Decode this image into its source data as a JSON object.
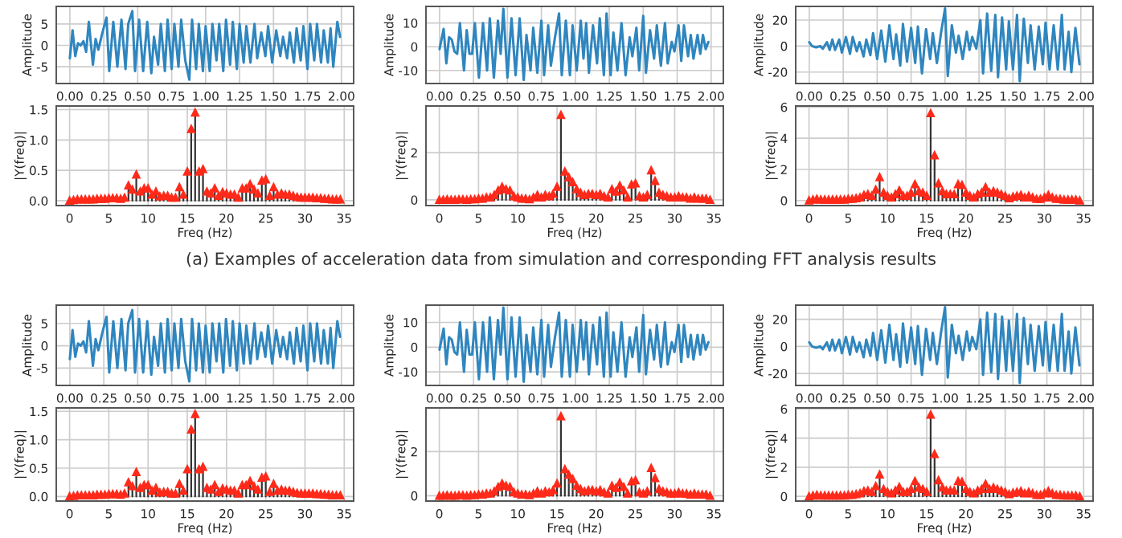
{
  "chart_data": [
    {
      "type": "line",
      "ylabel": "Amplitude",
      "color": "#2f86bf",
      "grid": true,
      "xlim": [
        -0.1,
        2.09
      ],
      "ylim": [
        -8.9,
        9.1
      ],
      "xticks": [
        {
          "value": 0,
          "label": "0.00"
        },
        {
          "value": 0.25,
          "label": "0.25"
        },
        {
          "value": 0.5,
          "label": "0.50"
        },
        {
          "value": 0.75,
          "label": "0.75"
        },
        {
          "value": 1,
          "label": "1.00"
        },
        {
          "value": 1.25,
          "label": "1.25"
        },
        {
          "value": 1.5,
          "label": "1.50"
        },
        {
          "value": 1.75,
          "label": "1.75"
        },
        {
          "value": 2,
          "label": "2.00"
        }
      ],
      "yticks": [
        -5,
        0,
        5
      ],
      "x": [
        0,
        0.02,
        0.04,
        0.06,
        0.08,
        0.1,
        0.12,
        0.14,
        0.17,
        0.19,
        0.21,
        0.24,
        0.27,
        0.29,
        0.32,
        0.35,
        0.38,
        0.41,
        0.43,
        0.46,
        0.48,
        0.51,
        0.54,
        0.57,
        0.6,
        0.62,
        0.65,
        0.67,
        0.7,
        0.72,
        0.75,
        0.77,
        0.8,
        0.82,
        0.85,
        0.88,
        0.9,
        0.93,
        0.95,
        0.98,
        1.0,
        1.03,
        1.05,
        1.08,
        1.1,
        1.13,
        1.15,
        1.18,
        1.2,
        1.23,
        1.25,
        1.28,
        1.3,
        1.33,
        1.36,
        1.38,
        1.41,
        1.44,
        1.46,
        1.49,
        1.52,
        1.55,
        1.57,
        1.6,
        1.62,
        1.65,
        1.67,
        1.7,
        1.72,
        1.75,
        1.77,
        1.8,
        1.82,
        1.85,
        1.87,
        1.9,
        1.92,
        1.94,
        1.97,
        1.99
      ],
      "values": [
        -3,
        3.5,
        -2.5,
        0.5,
        0,
        1,
        -1.5,
        5.5,
        -4.5,
        1.5,
        -1,
        3,
        6.5,
        -6,
        5.5,
        -5,
        6,
        -5.5,
        5,
        8,
        -6,
        6,
        -6,
        5.5,
        -6.5,
        2,
        -4.5,
        5,
        -6,
        6,
        -5.5,
        5,
        -5,
        6,
        -3.5,
        -8,
        6,
        -5.5,
        5,
        -6,
        4.5,
        -6,
        5,
        -3.5,
        5,
        -6,
        6,
        -4.5,
        5.5,
        -5.5,
        5,
        -4,
        4.5,
        -4,
        5,
        -3,
        3,
        -2.5,
        4.5,
        -4,
        3.5,
        -2.5,
        2,
        -3,
        3,
        -4,
        4,
        -3.5,
        4.5,
        -5.5,
        5,
        -3.5,
        5,
        -4,
        3.5,
        -4,
        4,
        -5,
        5.5,
        2
      ]
    },
    {
      "type": "line",
      "ylabel": "Amplitude",
      "color": "#2f86bf",
      "grid": true,
      "xlim": [
        -0.1,
        2.09
      ],
      "ylim": [
        -15.5,
        17
      ],
      "xticks": [
        {
          "value": 0,
          "label": "0.00"
        },
        {
          "value": 0.25,
          "label": "0.25"
        },
        {
          "value": 0.5,
          "label": "0.50"
        },
        {
          "value": 0.75,
          "label": "0.75"
        },
        {
          "value": 1,
          "label": "1.00"
        },
        {
          "value": 1.25,
          "label": "1.25"
        },
        {
          "value": 1.5,
          "label": "1.50"
        },
        {
          "value": 1.75,
          "label": "1.75"
        },
        {
          "value": 2,
          "label": "2.00"
        }
      ],
      "yticks": [
        -10,
        0,
        10
      ],
      "x": [
        0,
        0.03,
        0.05,
        0.07,
        0.09,
        0.11,
        0.13,
        0.15,
        0.18,
        0.2,
        0.22,
        0.24,
        0.26,
        0.29,
        0.32,
        0.35,
        0.37,
        0.4,
        0.43,
        0.45,
        0.47,
        0.5,
        0.53,
        0.56,
        0.59,
        0.62,
        0.64,
        0.67,
        0.69,
        0.72,
        0.75,
        0.77,
        0.8,
        0.82,
        0.85,
        0.88,
        0.9,
        0.93,
        0.96,
        0.98,
        1.01,
        1.04,
        1.06,
        1.08,
        1.1,
        1.13,
        1.16,
        1.18,
        1.21,
        1.23,
        1.26,
        1.28,
        1.31,
        1.34,
        1.37,
        1.4,
        1.42,
        1.45,
        1.47,
        1.5,
        1.52,
        1.55,
        1.58,
        1.6,
        1.63,
        1.66,
        1.68,
        1.71,
        1.73,
        1.76,
        1.78,
        1.8,
        1.83,
        1.85,
        1.87,
        1.9,
        1.92,
        1.94,
        1.96,
        1.98
      ],
      "values": [
        -1,
        7.5,
        -7,
        4,
        3,
        -2,
        -3,
        10,
        -10,
        7,
        -3,
        -3,
        10,
        -13,
        10,
        -10,
        12,
        -13,
        11,
        -3,
        16,
        -13,
        12,
        -12,
        12,
        -14,
        5,
        -10,
        8,
        -11,
        11,
        -12,
        9,
        -8,
        4,
        14,
        -12,
        11,
        -12,
        9,
        -10,
        11,
        -5,
        10,
        -11,
        9,
        -7,
        12,
        -12,
        14,
        -12,
        6,
        -10,
        10,
        -12,
        4,
        -4,
        8,
        -10,
        13,
        -11,
        7,
        -5,
        9,
        -8,
        10,
        -7,
        2,
        -2,
        9,
        -6,
        9,
        -4,
        5,
        -5,
        5,
        -3,
        5,
        -1,
        2
      ]
    },
    {
      "type": "line",
      "ylabel": "Amplitude",
      "color": "#2f86bf",
      "grid": true,
      "xlim": [
        -0.1,
        2.09
      ],
      "ylim": [
        -28.8,
        30.5
      ],
      "xticks": [
        {
          "value": 0,
          "label": "0.00"
        },
        {
          "value": 0.25,
          "label": "0.25"
        },
        {
          "value": 0.5,
          "label": "0.50"
        },
        {
          "value": 0.75,
          "label": "0.75"
        },
        {
          "value": 1,
          "label": "1.00"
        },
        {
          "value": 1.25,
          "label": "1.25"
        },
        {
          "value": 1.5,
          "label": "1.50"
        },
        {
          "value": 1.75,
          "label": "1.75"
        },
        {
          "value": 2,
          "label": "2.00"
        }
      ],
      "yticks": [
        -20,
        0,
        20
      ],
      "x": [
        0,
        0.02,
        0.05,
        0.08,
        0.1,
        0.13,
        0.15,
        0.17,
        0.19,
        0.22,
        0.24,
        0.27,
        0.3,
        0.32,
        0.35,
        0.37,
        0.4,
        0.42,
        0.45,
        0.47,
        0.5,
        0.53,
        0.56,
        0.59,
        0.62,
        0.64,
        0.67,
        0.69,
        0.72,
        0.75,
        0.78,
        0.8,
        0.83,
        0.86,
        0.89,
        0.91,
        0.94,
        0.97,
        1.0,
        1.02,
        1.05,
        1.08,
        1.1,
        1.13,
        1.16,
        1.18,
        1.2,
        1.23,
        1.26,
        1.28,
        1.31,
        1.34,
        1.37,
        1.39,
        1.42,
        1.45,
        1.47,
        1.5,
        1.53,
        1.55,
        1.58,
        1.61,
        1.63,
        1.66,
        1.69,
        1.72,
        1.74,
        1.77,
        1.8,
        1.83,
        1.86,
        1.88,
        1.91,
        1.93,
        1.96,
        1.99
      ],
      "values": [
        3,
        0,
        -1,
        0,
        -2,
        3,
        -3,
        5,
        -3,
        5,
        -5,
        7,
        -6,
        7,
        -4,
        3,
        -8,
        5,
        -7,
        10,
        -10,
        12,
        -12,
        16,
        -10,
        9,
        -15,
        17,
        -12,
        14,
        -13,
        15,
        -21,
        13,
        -10,
        10,
        -13,
        10,
        29,
        -23,
        16,
        -5,
        8,
        -10,
        11,
        -3,
        7,
        -2,
        20,
        -21,
        25,
        -19,
        24,
        -24,
        22,
        -18,
        19,
        -18,
        24,
        -27,
        21,
        -13,
        16,
        -18,
        15,
        -14,
        18,
        -18,
        16,
        -18,
        24,
        -18,
        11,
        -20,
        14,
        -14
      ]
    },
    {
      "type": "lollipop",
      "xlabel": "Freq (Hz)",
      "ylabel": "|Y(freq)|",
      "color": "#ff2a1a",
      "marker": "triangle",
      "grid": true,
      "xlim": [
        -1.7,
        36.2
      ],
      "ylim": [
        -0.08,
        1.56
      ],
      "xticks": [
        0,
        5,
        10,
        15,
        20,
        25,
        30,
        35
      ],
      "yticks": [
        {
          "value": 0,
          "label": "0.0"
        },
        {
          "value": 0.5,
          "label": "0.5"
        },
        {
          "value": 1,
          "label": "1.0"
        },
        {
          "value": 1.5,
          "label": "1.5"
        }
      ],
      "x": [
        0,
        0.5,
        1,
        1.5,
        2,
        2.5,
        3,
        3.5,
        4,
        4.5,
        5,
        5.5,
        6,
        6.5,
        7,
        7.5,
        8,
        8.5,
        9,
        9.5,
        10,
        10.5,
        11,
        11.5,
        12,
        12.5,
        13,
        13.5,
        14,
        14.5,
        15,
        15.5,
        16,
        16.5,
        17,
        17.5,
        18,
        18.5,
        19,
        19.5,
        20,
        20.5,
        21,
        21.5,
        22,
        22.5,
        23,
        23.5,
        24,
        24.5,
        25,
        25.5,
        26,
        26.5,
        27,
        27.5,
        28,
        28.5,
        29,
        29.5,
        30,
        30.5,
        31,
        31.5,
        32,
        32.5,
        33,
        33.5,
        34,
        34.5
      ],
      "values": [
        0,
        0.01,
        0.02,
        0.02,
        0.02,
        0.02,
        0.02,
        0.03,
        0.03,
        0.03,
        0.04,
        0.04,
        0.04,
        0.03,
        0.05,
        0.25,
        0.18,
        0.43,
        0.15,
        0.2,
        0.2,
        0.1,
        0.15,
        0.07,
        0.08,
        0.08,
        0.05,
        0.05,
        0.22,
        0.1,
        0.48,
        1.18,
        1.45,
        0.48,
        0.52,
        0.15,
        0.12,
        0.2,
        0.08,
        0.14,
        0.12,
        0.1,
        0.1,
        0.05,
        0.2,
        0.2,
        0.27,
        0.18,
        0.12,
        0.33,
        0.35,
        0.08,
        0.22,
        0.1,
        0.12,
        0.1,
        0.1,
        0.08,
        0.06,
        0.05,
        0.05,
        0.05,
        0.05,
        0.04,
        0.04,
        0.03,
        0.03,
        0.02,
        0.02,
        0.02
      ]
    },
    {
      "type": "lollipop",
      "xlabel": "Freq (Hz)",
      "ylabel": "|Y(freq)|",
      "color": "#ff2a1a",
      "marker": "triangle",
      "grid": true,
      "xlim": [
        -1.7,
        36.2
      ],
      "ylim": [
        -0.24,
        3.98
      ],
      "xticks": [
        0,
        5,
        10,
        15,
        20,
        25,
        30,
        35
      ],
      "yticks": [
        0,
        2
      ],
      "annotations": [
        "(a) Examples of acceleration data from simulation and corresponding FFT analysis results"
      ],
      "x": [
        0,
        0.5,
        1,
        1.5,
        2,
        2.5,
        3,
        3.5,
        4,
        4.5,
        5,
        5.5,
        6,
        6.5,
        7,
        7.5,
        8,
        8.5,
        9,
        9.5,
        10,
        10.5,
        11,
        11.5,
        12,
        12.5,
        13,
        13.5,
        14,
        14.5,
        15,
        15.5,
        16,
        16.5,
        17,
        17.5,
        18,
        18.5,
        19,
        19.5,
        20,
        20.5,
        21,
        21.5,
        22,
        22.5,
        23,
        23.5,
        24,
        24.5,
        25,
        25.5,
        26,
        26.5,
        27,
        27.5,
        28,
        28.5,
        29,
        29.5,
        30,
        30.5,
        31,
        31.5,
        32,
        32.5,
        33,
        33.5,
        34,
        34.5
      ],
      "values": [
        0,
        0,
        0.02,
        0,
        0,
        0.02,
        0.02,
        0,
        0.02,
        0.02,
        0.05,
        0.05,
        0.1,
        0.1,
        0.2,
        0.4,
        0.55,
        0.45,
        0.4,
        0.15,
        0.1,
        0.05,
        0.05,
        0.02,
        0.1,
        0.2,
        0.1,
        0.2,
        0.15,
        0.25,
        0.55,
        3.6,
        1.2,
        0.95,
        0.75,
        0.45,
        0.3,
        0.2,
        0.25,
        0.25,
        0.2,
        0.25,
        0.15,
        0.1,
        0.45,
        0.35,
        0.6,
        0.4,
        0.1,
        0.65,
        0.7,
        0.15,
        0.1,
        0.2,
        1.25,
        0.8,
        0.3,
        0.2,
        0.15,
        0.1,
        0.1,
        0.15,
        0.1,
        0.1,
        0.05,
        0.1,
        0.05,
        0.05,
        0.05,
        0
      ]
    },
    {
      "type": "lollipop",
      "xlabel": "Freq (Hz)",
      "ylabel": "|Y(freq)|",
      "color": "#ff2a1a",
      "marker": "triangle",
      "grid": true,
      "xlim": [
        -1.7,
        36.2
      ],
      "ylim": [
        -0.32,
        6.07
      ],
      "xticks": [
        0,
        5,
        10,
        15,
        20,
        25,
        30,
        35
      ],
      "yticks": [
        0,
        2,
        4,
        6
      ],
      "x": [
        0,
        0.5,
        1,
        1.5,
        2,
        2.5,
        3,
        3.5,
        4,
        4.5,
        5,
        5.5,
        6,
        6.5,
        7,
        7.5,
        8,
        8.5,
        9,
        9.5,
        10,
        10.5,
        11,
        11.5,
        12,
        12.5,
        13,
        13.5,
        14,
        14.5,
        15,
        15.5,
        16,
        16.5,
        17,
        17.5,
        18,
        18.5,
        19,
        19.5,
        20,
        20.5,
        21,
        21.5,
        22,
        22.5,
        23,
        23.5,
        24,
        24.5,
        25,
        25.5,
        26,
        26.5,
        27,
        27.5,
        28,
        28.5,
        29,
        29.5,
        30,
        30.5,
        31,
        31.5,
        32,
        32.5,
        33,
        33.5,
        34,
        34.5
      ],
      "values": [
        0,
        0.05,
        0.1,
        0.05,
        0.05,
        0.05,
        0.05,
        0.05,
        0.05,
        0.05,
        0.1,
        0.1,
        0.15,
        0.2,
        0.35,
        0.4,
        0.3,
        0.7,
        1.5,
        0.5,
        0.3,
        0.2,
        0.4,
        0.65,
        0.3,
        0.3,
        0.5,
        1.05,
        0.6,
        0.5,
        0.3,
        5.6,
        2.9,
        1.1,
        0.6,
        0.4,
        0.4,
        0.4,
        1.05,
        1.0,
        0.5,
        0.3,
        0.2,
        0.4,
        0.5,
        0.85,
        0.5,
        0.6,
        0.5,
        0.4,
        0.3,
        0.15,
        0.25,
        0.3,
        0.35,
        0.2,
        0.3,
        0.2,
        0.1,
        0.1,
        0.2,
        0.35,
        0.2,
        0.1,
        0.1,
        0.05,
        0.05,
        0.05,
        0.05,
        0
      ]
    },
    {
      "type": "line",
      "ylabel": "Amplitude",
      "color": "#2f86bf",
      "grid": true,
      "xlim": [
        -0.1,
        2.09
      ],
      "ylim": [
        -8.9,
        9.1
      ],
      "xticks": [
        {
          "value": 0,
          "label": "0.00"
        },
        {
          "value": 0.25,
          "label": "0.25"
        },
        {
          "value": 0.5,
          "label": "0.50"
        },
        {
          "value": 0.75,
          "label": "0.75"
        },
        {
          "value": 1,
          "label": "1.00"
        },
        {
          "value": 1.25,
          "label": "1.25"
        },
        {
          "value": 1.5,
          "label": "1.50"
        },
        {
          "value": 1.75,
          "label": "1.75"
        },
        {
          "value": 2,
          "label": "2.00"
        }
      ],
      "yticks": [
        -5,
        0,
        5
      ],
      "x": [
        0,
        0.02,
        0.04,
        0.06,
        0.08,
        0.1,
        0.12,
        0.14,
        0.17,
        0.19,
        0.21,
        0.24,
        0.27,
        0.29,
        0.32,
        0.35,
        0.38,
        0.41,
        0.43,
        0.46,
        0.48,
        0.51,
        0.54,
        0.57,
        0.6,
        0.62,
        0.65,
        0.67,
        0.7,
        0.72,
        0.75,
        0.77,
        0.8,
        0.82,
        0.85,
        0.88,
        0.9,
        0.93,
        0.95,
        0.98,
        1.0,
        1.03,
        1.05,
        1.08,
        1.1,
        1.13,
        1.15,
        1.18,
        1.2,
        1.23,
        1.25,
        1.28,
        1.3,
        1.33,
        1.36,
        1.38,
        1.41,
        1.44,
        1.46,
        1.49,
        1.52,
        1.55,
        1.57,
        1.6,
        1.62,
        1.65,
        1.67,
        1.7,
        1.72,
        1.75,
        1.77,
        1.8,
        1.82,
        1.85,
        1.87,
        1.9,
        1.92,
        1.94,
        1.97,
        1.99
      ],
      "values": [
        -3,
        3.5,
        -2.5,
        0.5,
        0,
        1,
        -1.5,
        5.5,
        -4.5,
        1.5,
        -1,
        3,
        6.5,
        -6,
        5.5,
        -5,
        6,
        -5.5,
        5,
        8,
        -6,
        6,
        -6,
        5.5,
        -6.5,
        2,
        -4.5,
        5,
        -6,
        6,
        -5.5,
        5,
        -5,
        6,
        -3.5,
        -8,
        6,
        -5.5,
        5,
        -6,
        4.5,
        -6,
        5,
        -3.5,
        5,
        -6,
        6,
        -4.5,
        5.5,
        -5.5,
        5,
        -4,
        4.5,
        -4,
        5,
        -3,
        3,
        -2.5,
        4.5,
        -4,
        3.5,
        -2.5,
        2,
        -3,
        3,
        -4,
        4,
        -3.5,
        4.5,
        -5.5,
        5,
        -3.5,
        5,
        -4,
        3.5,
        -4,
        4,
        -5,
        5.5,
        2
      ]
    },
    {
      "type": "line",
      "ylabel": "Amplitude",
      "color": "#2f86bf",
      "grid": true,
      "xlim": [
        -0.1,
        2.09
      ],
      "ylim": [
        -15.5,
        17
      ],
      "xticks": [
        {
          "value": 0,
          "label": "0.00"
        },
        {
          "value": 0.25,
          "label": "0.25"
        },
        {
          "value": 0.5,
          "label": "0.50"
        },
        {
          "value": 0.75,
          "label": "0.75"
        },
        {
          "value": 1,
          "label": "1.00"
        },
        {
          "value": 1.25,
          "label": "1.25"
        },
        {
          "value": 1.5,
          "label": "1.50"
        },
        {
          "value": 1.75,
          "label": "1.75"
        },
        {
          "value": 2,
          "label": "2.00"
        }
      ],
      "yticks": [
        -10,
        0,
        10
      ],
      "x": [
        0,
        0.03,
        0.05,
        0.07,
        0.09,
        0.11,
        0.13,
        0.15,
        0.18,
        0.2,
        0.22,
        0.24,
        0.26,
        0.29,
        0.32,
        0.35,
        0.37,
        0.4,
        0.43,
        0.45,
        0.47,
        0.5,
        0.53,
        0.56,
        0.59,
        0.62,
        0.64,
        0.67,
        0.69,
        0.72,
        0.75,
        0.77,
        0.8,
        0.82,
        0.85,
        0.88,
        0.9,
        0.93,
        0.96,
        0.98,
        1.01,
        1.04,
        1.06,
        1.08,
        1.1,
        1.13,
        1.16,
        1.18,
        1.21,
        1.23,
        1.26,
        1.28,
        1.31,
        1.34,
        1.37,
        1.4,
        1.42,
        1.45,
        1.47,
        1.5,
        1.52,
        1.55,
        1.58,
        1.6,
        1.63,
        1.66,
        1.68,
        1.71,
        1.73,
        1.76,
        1.78,
        1.8,
        1.83,
        1.85,
        1.87,
        1.9,
        1.92,
        1.94,
        1.96,
        1.98
      ],
      "values": [
        -1,
        7.5,
        -7,
        4,
        3,
        -2,
        -3,
        10,
        -10,
        7,
        -3,
        -3,
        10,
        -13,
        10,
        -10,
        12,
        -13,
        11,
        -3,
        16,
        -13,
        12,
        -12,
        12,
        -14,
        5,
        -10,
        8,
        -11,
        11,
        -12,
        9,
        -8,
        4,
        14,
        -12,
        11,
        -12,
        9,
        -10,
        11,
        -5,
        10,
        -11,
        9,
        -7,
        12,
        -12,
        14,
        -12,
        6,
        -10,
        10,
        -12,
        4,
        -4,
        8,
        -10,
        13,
        -11,
        7,
        -5,
        9,
        -8,
        10,
        -7,
        2,
        -2,
        9,
        -6,
        9,
        -4,
        5,
        -5,
        5,
        -3,
        5,
        -1,
        2
      ]
    },
    {
      "type": "line",
      "ylabel": "Amplitude",
      "color": "#2f86bf",
      "grid": true,
      "xlim": [
        -0.1,
        2.09
      ],
      "ylim": [
        -28.8,
        30.5
      ],
      "xticks": [
        {
          "value": 0,
          "label": "0.00"
        },
        {
          "value": 0.25,
          "label": "0.25"
        },
        {
          "value": 0.5,
          "label": "0.50"
        },
        {
          "value": 0.75,
          "label": "0.75"
        },
        {
          "value": 1,
          "label": "1.00"
        },
        {
          "value": 1.25,
          "label": "1.25"
        },
        {
          "value": 1.5,
          "label": "1.50"
        },
        {
          "value": 1.75,
          "label": "1.75"
        },
        {
          "value": 2,
          "label": "2.00"
        }
      ],
      "yticks": [
        -20,
        0,
        20
      ],
      "x": [
        0,
        0.02,
        0.05,
        0.08,
        0.1,
        0.13,
        0.15,
        0.17,
        0.19,
        0.22,
        0.24,
        0.27,
        0.3,
        0.32,
        0.35,
        0.37,
        0.4,
        0.42,
        0.45,
        0.47,
        0.5,
        0.53,
        0.56,
        0.59,
        0.62,
        0.64,
        0.67,
        0.69,
        0.72,
        0.75,
        0.78,
        0.8,
        0.83,
        0.86,
        0.89,
        0.91,
        0.94,
        0.97,
        1.0,
        1.02,
        1.05,
        1.08,
        1.1,
        1.13,
        1.16,
        1.18,
        1.2,
        1.23,
        1.26,
        1.28,
        1.31,
        1.34,
        1.37,
        1.39,
        1.42,
        1.45,
        1.47,
        1.5,
        1.53,
        1.55,
        1.58,
        1.61,
        1.63,
        1.66,
        1.69,
        1.72,
        1.74,
        1.77,
        1.8,
        1.83,
        1.86,
        1.88,
        1.91,
        1.93,
        1.96,
        1.99
      ],
      "values": [
        3,
        0,
        -1,
        0,
        -2,
        3,
        -3,
        5,
        -3,
        5,
        -5,
        7,
        -6,
        7,
        -4,
        3,
        -8,
        5,
        -7,
        10,
        -10,
        12,
        -12,
        16,
        -10,
        9,
        -15,
        17,
        -12,
        14,
        -13,
        15,
        -21,
        13,
        -10,
        10,
        -13,
        10,
        29,
        -23,
        16,
        -5,
        8,
        -10,
        11,
        -3,
        7,
        -2,
        20,
        -21,
        25,
        -19,
        24,
        -24,
        22,
        -18,
        19,
        -18,
        24,
        -27,
        21,
        -13,
        16,
        -18,
        15,
        -14,
        18,
        -18,
        16,
        -18,
        24,
        -18,
        11,
        -20,
        14,
        -14
      ]
    },
    {
      "type": "lollipop",
      "xlabel": "Freq (Hz)",
      "ylabel": "|Y(freq)|",
      "color": "#ff2a1a",
      "marker": "triangle",
      "grid": true,
      "xlim": [
        -1.7,
        36.2
      ],
      "ylim": [
        -0.08,
        1.56
      ],
      "xticks": [
        0,
        5,
        10,
        15,
        20,
        25,
        30,
        35
      ],
      "yticks": [
        {
          "value": 0,
          "label": "0.0"
        },
        {
          "value": 0.5,
          "label": "0.5"
        },
        {
          "value": 1,
          "label": "1.0"
        },
        {
          "value": 1.5,
          "label": "1.5"
        }
      ],
      "x": [
        0,
        0.5,
        1,
        1.5,
        2,
        2.5,
        3,
        3.5,
        4,
        4.5,
        5,
        5.5,
        6,
        6.5,
        7,
        7.5,
        8,
        8.5,
        9,
        9.5,
        10,
        10.5,
        11,
        11.5,
        12,
        12.5,
        13,
        13.5,
        14,
        14.5,
        15,
        15.5,
        16,
        16.5,
        17,
        17.5,
        18,
        18.5,
        19,
        19.5,
        20,
        20.5,
        21,
        21.5,
        22,
        22.5,
        23,
        23.5,
        24,
        24.5,
        25,
        25.5,
        26,
        26.5,
        27,
        27.5,
        28,
        28.5,
        29,
        29.5,
        30,
        30.5,
        31,
        31.5,
        32,
        32.5,
        33,
        33.5,
        34,
        34.5
      ],
      "values": [
        0,
        0.01,
        0.02,
        0.02,
        0.02,
        0.02,
        0.02,
        0.03,
        0.03,
        0.03,
        0.04,
        0.04,
        0.04,
        0.03,
        0.05,
        0.25,
        0.18,
        0.43,
        0.15,
        0.2,
        0.2,
        0.1,
        0.15,
        0.07,
        0.08,
        0.08,
        0.05,
        0.05,
        0.22,
        0.1,
        0.48,
        1.18,
        1.45,
        0.48,
        0.52,
        0.15,
        0.12,
        0.2,
        0.08,
        0.14,
        0.12,
        0.1,
        0.1,
        0.05,
        0.2,
        0.2,
        0.27,
        0.18,
        0.12,
        0.33,
        0.35,
        0.08,
        0.22,
        0.1,
        0.12,
        0.1,
        0.1,
        0.08,
        0.06,
        0.05,
        0.05,
        0.05,
        0.05,
        0.04,
        0.04,
        0.03,
        0.03,
        0.02,
        0.02,
        0.02
      ]
    },
    {
      "type": "lollipop",
      "xlabel": "Freq (Hz)",
      "ylabel": "|Y(freq)|",
      "color": "#ff2a1a",
      "marker": "triangle",
      "grid": true,
      "xlim": [
        -1.7,
        36.2
      ],
      "ylim": [
        -0.24,
        3.98
      ],
      "xticks": [
        0,
        5,
        10,
        15,
        20,
        25,
        30,
        35
      ],
      "yticks": [
        0,
        2
      ],
      "x": [
        0,
        0.5,
        1,
        1.5,
        2,
        2.5,
        3,
        3.5,
        4,
        4.5,
        5,
        5.5,
        6,
        6.5,
        7,
        7.5,
        8,
        8.5,
        9,
        9.5,
        10,
        10.5,
        11,
        11.5,
        12,
        12.5,
        13,
        13.5,
        14,
        14.5,
        15,
        15.5,
        16,
        16.5,
        17,
        17.5,
        18,
        18.5,
        19,
        19.5,
        20,
        20.5,
        21,
        21.5,
        22,
        22.5,
        23,
        23.5,
        24,
        24.5,
        25,
        25.5,
        26,
        26.5,
        27,
        27.5,
        28,
        28.5,
        29,
        29.5,
        30,
        30.5,
        31,
        31.5,
        32,
        32.5,
        33,
        33.5,
        34,
        34.5
      ],
      "values": [
        0,
        0,
        0.02,
        0,
        0,
        0.02,
        0.02,
        0,
        0.02,
        0.02,
        0.05,
        0.05,
        0.1,
        0.1,
        0.2,
        0.4,
        0.55,
        0.45,
        0.4,
        0.15,
        0.1,
        0.05,
        0.05,
        0.02,
        0.1,
        0.2,
        0.1,
        0.2,
        0.15,
        0.25,
        0.55,
        3.6,
        1.2,
        0.95,
        0.75,
        0.45,
        0.3,
        0.2,
        0.25,
        0.25,
        0.2,
        0.25,
        0.15,
        0.1,
        0.45,
        0.35,
        0.6,
        0.4,
        0.1,
        0.65,
        0.7,
        0.15,
        0.1,
        0.2,
        1.25,
        0.8,
        0.3,
        0.2,
        0.15,
        0.1,
        0.1,
        0.15,
        0.1,
        0.1,
        0.05,
        0.1,
        0.05,
        0.05,
        0.05,
        0
      ]
    },
    {
      "type": "lollipop",
      "xlabel": "Freq (Hz)",
      "ylabel": "|Y(freq)|",
      "color": "#ff2a1a",
      "marker": "triangle",
      "grid": true,
      "xlim": [
        -1.7,
        36.2
      ],
      "ylim": [
        -0.32,
        6.07
      ],
      "xticks": [
        0,
        5,
        10,
        15,
        20,
        25,
        30,
        35
      ],
      "yticks": [
        0,
        2,
        4,
        6
      ],
      "x": [
        0,
        0.5,
        1,
        1.5,
        2,
        2.5,
        3,
        3.5,
        4,
        4.5,
        5,
        5.5,
        6,
        6.5,
        7,
        7.5,
        8,
        8.5,
        9,
        9.5,
        10,
        10.5,
        11,
        11.5,
        12,
        12.5,
        13,
        13.5,
        14,
        14.5,
        15,
        15.5,
        16,
        16.5,
        17,
        17.5,
        18,
        18.5,
        19,
        19.5,
        20,
        20.5,
        21,
        21.5,
        22,
        22.5,
        23,
        23.5,
        24,
        24.5,
        25,
        25.5,
        26,
        26.5,
        27,
        27.5,
        28,
        28.5,
        29,
        29.5,
        30,
        30.5,
        31,
        31.5,
        32,
        32.5,
        33,
        33.5,
        34,
        34.5
      ],
      "values": [
        0,
        0.05,
        0.1,
        0.05,
        0.05,
        0.05,
        0.05,
        0.05,
        0.05,
        0.05,
        0.1,
        0.1,
        0.15,
        0.2,
        0.35,
        0.4,
        0.3,
        0.7,
        1.5,
        0.5,
        0.3,
        0.2,
        0.4,
        0.65,
        0.3,
        0.3,
        0.5,
        1.05,
        0.6,
        0.5,
        0.3,
        5.6,
        2.9,
        1.1,
        0.6,
        0.4,
        0.4,
        0.4,
        1.05,
        1.0,
        0.5,
        0.3,
        0.2,
        0.4,
        0.5,
        0.85,
        0.5,
        0.6,
        0.5,
        0.4,
        0.3,
        0.15,
        0.25,
        0.3,
        0.35,
        0.2,
        0.3,
        0.2,
        0.1,
        0.1,
        0.2,
        0.35,
        0.2,
        0.1,
        0.1,
        0.05,
        0.05,
        0.05,
        0.05,
        0
      ]
    }
  ]
}
